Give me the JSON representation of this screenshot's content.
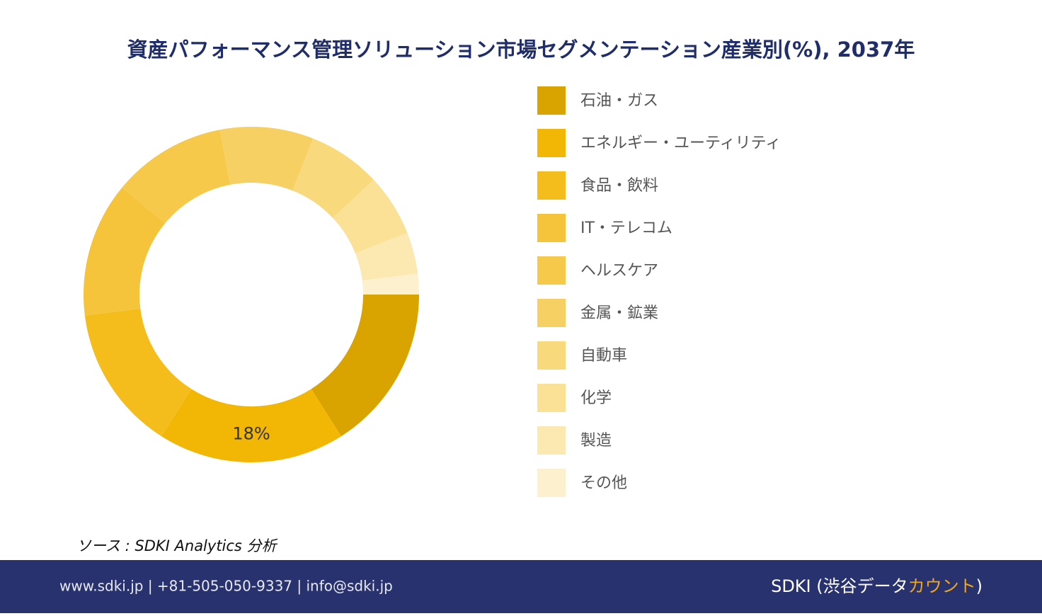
{
  "chart_data": {
    "type": "donut",
    "title": "資産パフォーマンス管理ソリューション市場セグメンテーション産業別(%), 2037年",
    "categories": [
      "石油・ガス",
      "エネルギー・ユーティリティ",
      "食品・飲料",
      "IT・テレコム",
      "ヘルスケア",
      "金属・鉱業",
      "自動車",
      "化学",
      "製造",
      "その他"
    ],
    "values": [
      16,
      18,
      14,
      13,
      11,
      9,
      7,
      6,
      4,
      2
    ],
    "value_labels": [
      null,
      "18%",
      null,
      null,
      null,
      null,
      null,
      null,
      null,
      null
    ],
    "colors": [
      "#d9a300",
      "#f2b705",
      "#f4bd1c",
      "#f5c43a",
      "#f6c94a",
      "#f7d063",
      "#f8d97b",
      "#fae196",
      "#fce8b1",
      "#fdf0cf"
    ]
  },
  "source": "ソース : SDKI Analytics 分析",
  "footer": {
    "contact": "www.sdki.jp | +81-505-050-9337 | info@sdki.jp",
    "brand_prefix": "SDKI (渋谷データ",
    "brand_highlight": "カウント",
    "brand_suffix": ")"
  }
}
